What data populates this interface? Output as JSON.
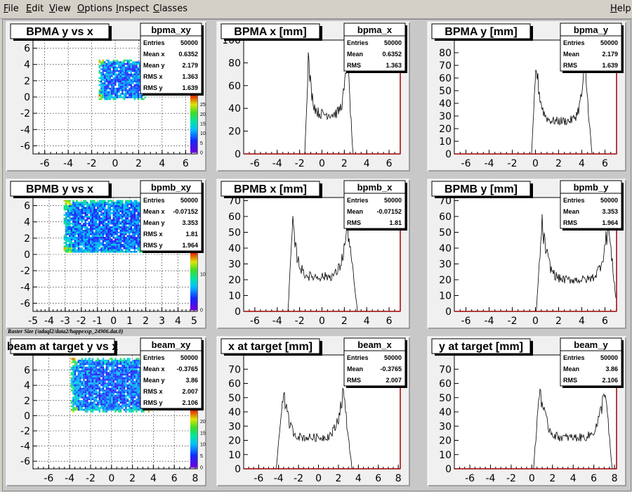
{
  "menu": {
    "items": [
      {
        "label": "File",
        "ul": "F"
      },
      {
        "label": "Edit",
        "ul": "E"
      },
      {
        "label": "View",
        "ul": "V"
      },
      {
        "label": "Options",
        "ul": "O"
      },
      {
        "label": "Inspect",
        "ul": "I"
      },
      {
        "label": "Classes",
        "ul": "C"
      }
    ],
    "help": "Help"
  },
  "raster_note": "Raster Size (/adaql2/data2/happexsp_24906.dat.0)",
  "chart_data": [
    {
      "id": "bpma_xy",
      "type": "heatmap",
      "title": "BPMA y vs x",
      "stats_name": "bpma_xy",
      "stats": [
        [
          "Entries",
          "50000"
        ],
        [
          "Mean x",
          "0.6352"
        ],
        [
          "Mean y",
          "2.179"
        ],
        [
          "RMS x",
          "1.363"
        ],
        [
          "RMS y",
          "1.639"
        ]
      ],
      "xlim": [
        -7,
        7
      ],
      "ylim": [
        -7,
        7
      ],
      "xticks": [
        -6,
        -4,
        -2,
        0,
        2,
        4,
        6
      ],
      "yticks": [
        -6,
        -4,
        -2,
        0,
        2,
        4,
        6
      ],
      "grid": true,
      "region": {
        "x": [
          -1.4,
          2.6
        ],
        "y": [
          -0.2,
          4.6
        ]
      },
      "colorbar_ticks": [
        0,
        5,
        10,
        15,
        20,
        25
      ],
      "colorbar_range": [
        0,
        30
      ]
    },
    {
      "id": "bpma_x",
      "type": "bar",
      "title": "BPMA x [mm]",
      "stats_name": "bpma_x",
      "stats": [
        [
          "Entries",
          "50000"
        ],
        [
          "Mean",
          "0.6352"
        ],
        [
          "RMS",
          "1.363"
        ]
      ],
      "xlim": [
        -7,
        7
      ],
      "ylim": [
        0,
        100
      ],
      "xticks": [
        -6,
        -4,
        -2,
        0,
        2,
        4,
        6
      ],
      "yticks": [
        0,
        20,
        40,
        60,
        80,
        100
      ],
      "shape": {
        "left": -1.5,
        "right": 2.8,
        "peak_left": -1.2,
        "peak_right": 2.3,
        "peak": 85,
        "valley": 35
      }
    },
    {
      "id": "bpma_y",
      "type": "bar",
      "title": "BPMA y [mm]",
      "stats_name": "bpma_y",
      "stats": [
        [
          "Entries",
          "50000"
        ],
        [
          "Mean",
          "2.179"
        ],
        [
          "RMS",
          "1.639"
        ]
      ],
      "xlim": [
        -7,
        7
      ],
      "ylim": [
        0,
        90
      ],
      "xticks": [
        -6,
        -4,
        -2,
        0,
        2,
        4,
        6
      ],
      "yticks": [
        0,
        10,
        20,
        30,
        40,
        50,
        60,
        70,
        80
      ],
      "shape": {
        "left": -0.3,
        "right": 4.9,
        "peak_left": 0.1,
        "peak_right": 4.3,
        "peak": 70,
        "valley": 26
      }
    },
    {
      "id": "bpmb_xy",
      "type": "heatmap",
      "title": "BPMB y vs x",
      "stats_name": "bpmb_xy",
      "stats": [
        [
          "Entries",
          "50000"
        ],
        [
          "Mean x",
          "-0.07152"
        ],
        [
          "Mean y",
          "3.353"
        ],
        [
          "RMS x",
          "1.81"
        ],
        [
          "RMS y",
          "1.964"
        ]
      ],
      "xlim": [
        -5,
        5.2
      ],
      "ylim": [
        -7,
        7
      ],
      "xticks": [
        -5,
        -4,
        -3,
        -2,
        -1,
        0,
        1,
        2,
        3,
        4,
        5
      ],
      "yticks": [
        -6,
        -4,
        -2,
        0,
        2,
        4,
        6
      ],
      "grid": true,
      "region": {
        "x": [
          -3.1,
          2.9
        ],
        "y": [
          0.3,
          6.7
        ]
      },
      "colorbar_ticks": [
        0,
        10
      ],
      "colorbar_range": [
        0,
        16
      ]
    },
    {
      "id": "bpmb_x",
      "type": "bar",
      "title": "BPMB x [mm]",
      "stats_name": "bpmb_x",
      "stats": [
        [
          "Entries",
          "50000"
        ],
        [
          "Mean",
          "-0.07152"
        ],
        [
          "RMS",
          "1.81"
        ]
      ],
      "xlim": [
        -7,
        7
      ],
      "ylim": [
        0,
        72
      ],
      "xticks": [
        -6,
        -4,
        -2,
        0,
        2,
        4,
        6
      ],
      "yticks": [
        0,
        10,
        20,
        30,
        40,
        50,
        60,
        70
      ],
      "shape": {
        "left": -3.0,
        "right": 3.2,
        "peak_left": -2.6,
        "peak_right": 2.3,
        "peak": 55,
        "valley": 22
      }
    },
    {
      "id": "bpmb_y",
      "type": "bar",
      "title": "BPMB y [mm]",
      "stats_name": "bpmb_y",
      "stats": [
        [
          "Entries",
          "50000"
        ],
        [
          "Mean",
          "3.353"
        ],
        [
          "RMS",
          "1.964"
        ]
      ],
      "xlim": [
        -7,
        7
      ],
      "ylim": [
        0,
        72
      ],
      "xticks": [
        -6,
        -4,
        -2,
        0,
        2,
        4,
        6
      ],
      "yticks": [
        0,
        10,
        20,
        30,
        40,
        50,
        60,
        70
      ],
      "shape": {
        "left": 0.1,
        "right": 7.1,
        "peak_left": 0.6,
        "peak_right": 6.3,
        "peak": 55,
        "valley": 20
      }
    },
    {
      "id": "beam_xy",
      "type": "heatmap",
      "title": "beam at target y vs x",
      "stats_name": "beam_xy",
      "stats": [
        [
          "Entries",
          "50000"
        ],
        [
          "Mean x",
          "-0.3765"
        ],
        [
          "Mean y",
          "3.86"
        ],
        [
          "RMS x",
          "2.007"
        ],
        [
          "RMS y",
          "2.106"
        ]
      ],
      "xlim": [
        -7.5,
        8.2
      ],
      "ylim": [
        -7,
        8
      ],
      "xticks": [
        -6,
        -4,
        -2,
        0,
        2,
        4,
        6,
        8
      ],
      "yticks": [
        -6,
        -4,
        -2,
        0,
        2,
        4,
        6
      ],
      "grid": true,
      "region": {
        "x": [
          -3.9,
          3.6
        ],
        "y": [
          0.6,
          7.6
        ]
      },
      "colorbar_ticks": [
        0,
        5,
        10,
        15,
        20
      ],
      "colorbar_range": [
        0,
        25
      ]
    },
    {
      "id": "beam_x",
      "type": "bar",
      "title": "x at target [mm]",
      "stats_name": "beam_x",
      "stats": [
        [
          "Entries",
          "50000"
        ],
        [
          "Mean",
          "-0.3765"
        ],
        [
          "RMS",
          "2.007"
        ]
      ],
      "xlim": [
        -7.5,
        8.2
      ],
      "ylim": [
        0,
        80
      ],
      "xticks": [
        -6,
        -4,
        -2,
        0,
        2,
        4,
        6,
        8
      ],
      "yticks": [
        0,
        10,
        20,
        30,
        40,
        50,
        60,
        70
      ],
      "shape": {
        "left": -4.2,
        "right": 3.4,
        "peak_left": -3.5,
        "peak_right": 2.5,
        "peak": 55,
        "valley": 22
      }
    },
    {
      "id": "beam_y",
      "type": "bar",
      "title": "y at target [mm]",
      "stats_name": "beam_y",
      "stats": [
        [
          "Entries",
          "50000"
        ],
        [
          "Mean",
          "3.86"
        ],
        [
          "RMS",
          "2.106"
        ]
      ],
      "xlim": [
        -7.5,
        8.2
      ],
      "ylim": [
        0,
        80
      ],
      "xticks": [
        -6,
        -4,
        -2,
        0,
        2,
        4,
        6,
        8
      ],
      "yticks": [
        0,
        10,
        20,
        30,
        40,
        50,
        60,
        70
      ],
      "shape": {
        "left": 0.2,
        "right": 7.8,
        "peak_left": 0.8,
        "peak_right": 7.1,
        "peak": 58,
        "valley": 22
      }
    }
  ]
}
